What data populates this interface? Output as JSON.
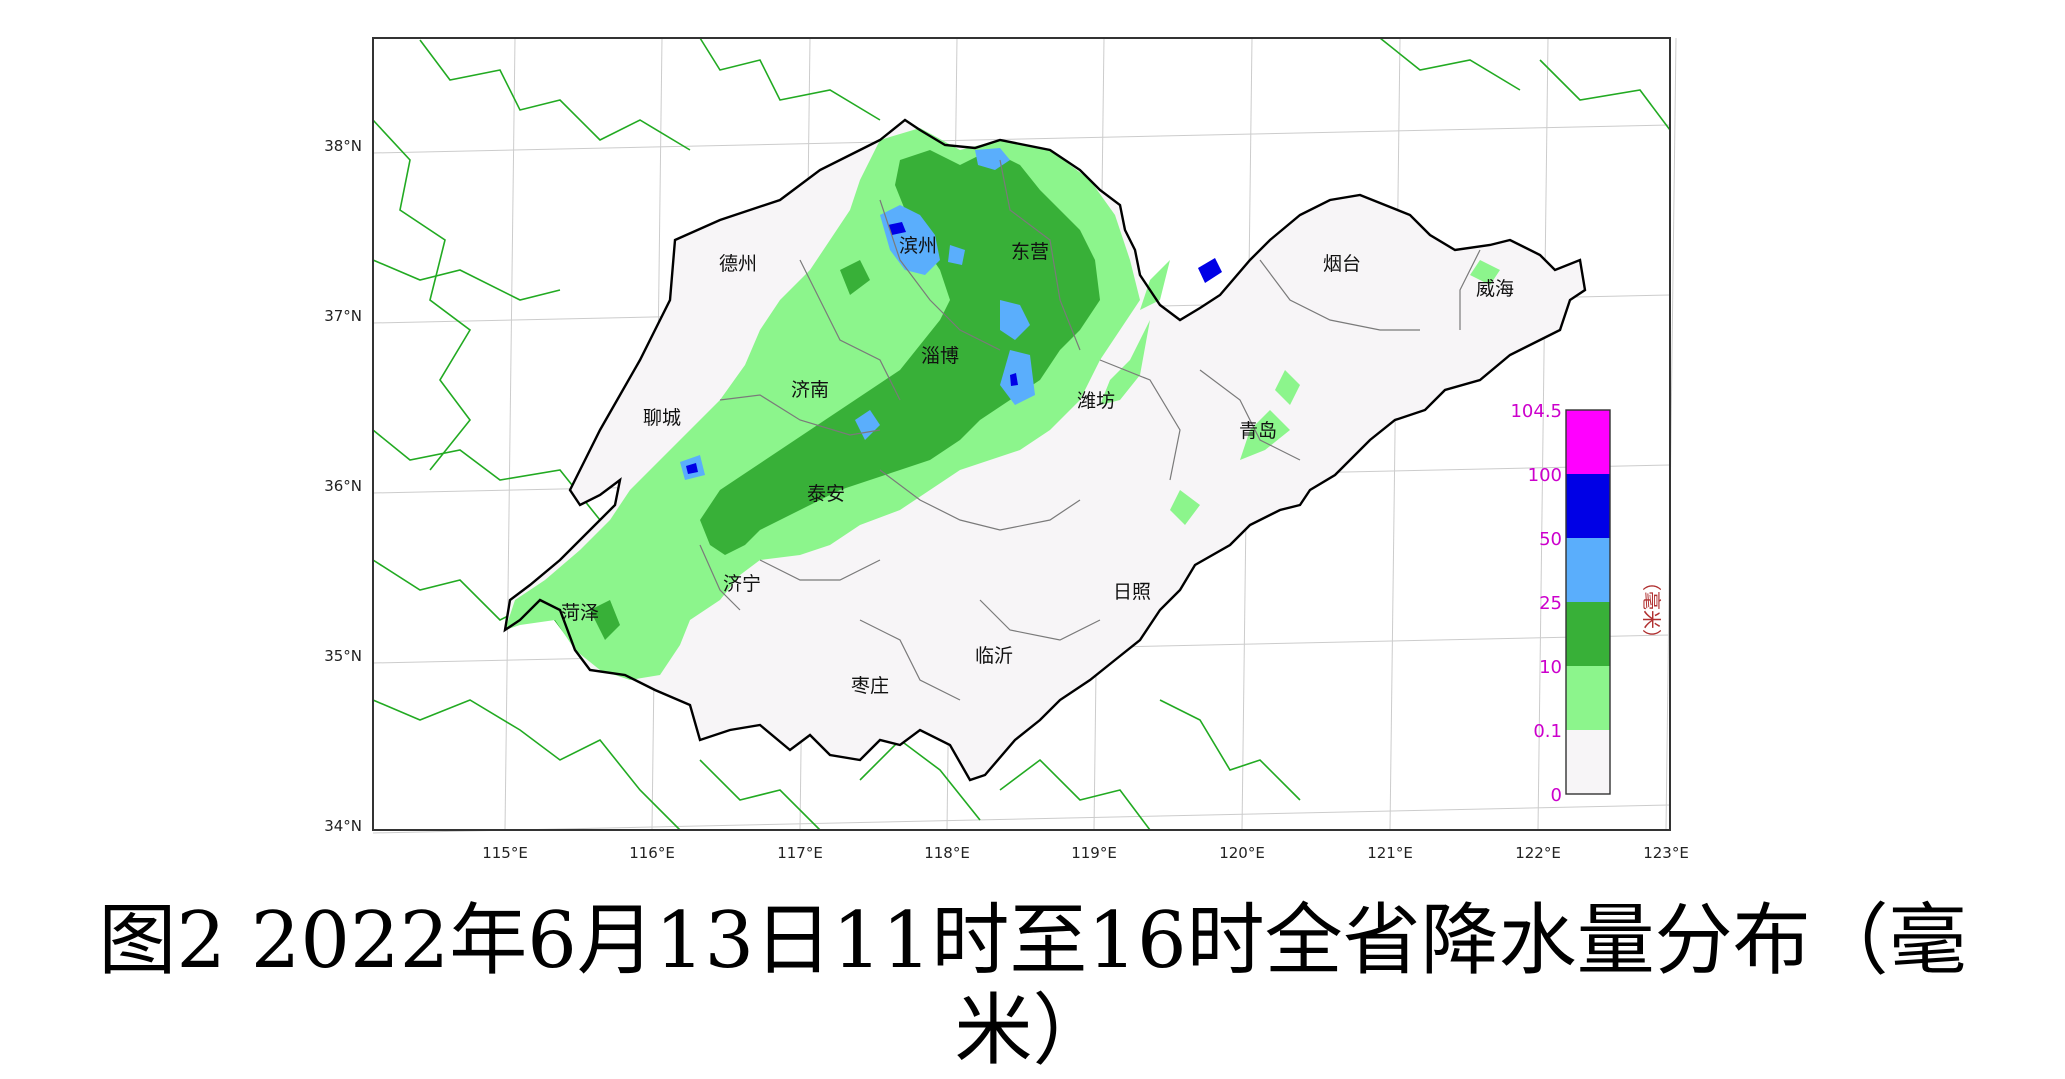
{
  "colors": {
    "frame": "#333333",
    "province_border": "#000000",
    "neighbor_border": "#22aa22",
    "grid": "#cccccc",
    "land": "#f7f5f7",
    "rain_light": "#8cf58c",
    "rain_moderate": "#38b038",
    "rain_heavy": "#5aaefc",
    "rain_storm": "#0000e6",
    "rain_extreme": "#ff00ff",
    "legend_text": "#cc00cc",
    "unit_text": "#b03030"
  },
  "map": {
    "lat_labels": [
      "38°N",
      "37°N",
      "36°N",
      "35°N",
      "34°N"
    ],
    "lon_labels": [
      "115°E",
      "116°E",
      "117°E",
      "118°E",
      "119°E",
      "120°E",
      "121°E",
      "122°E",
      "123°E"
    ],
    "cities": [
      {
        "name": "德州"
      },
      {
        "name": "滨州"
      },
      {
        "name": "东营"
      },
      {
        "name": "烟台"
      },
      {
        "name": "威海"
      },
      {
        "name": "淄博"
      },
      {
        "name": "济南"
      },
      {
        "name": "聊城"
      },
      {
        "name": "潍坊"
      },
      {
        "name": "青岛"
      },
      {
        "name": "泰安"
      },
      {
        "name": "济宁"
      },
      {
        "name": "菏泽"
      },
      {
        "name": "日照"
      },
      {
        "name": "临沂"
      },
      {
        "name": "枣庄"
      }
    ]
  },
  "legend": {
    "levels": [
      "104.5",
      "100",
      "50",
      "25",
      "10",
      "0.1",
      "0"
    ],
    "unit": "（毫米）",
    "bins": [
      "rain_extreme",
      "rain_storm",
      "rain_heavy",
      "rain_moderate",
      "rain_light",
      "land"
    ]
  },
  "caption": {
    "line1": "图2 2022年6月13日11时至16时全省降水量分布（毫",
    "line2": "米）"
  }
}
